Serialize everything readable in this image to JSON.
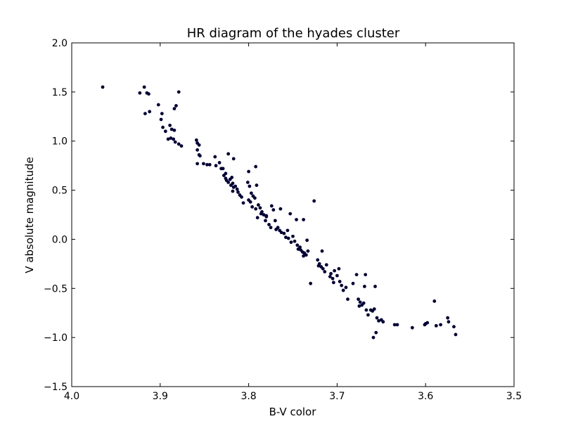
{
  "chart_data": {
    "type": "scatter",
    "title": "HR diagram of the hyades cluster",
    "xlabel": "B-V color",
    "ylabel": "V absolute magnitude",
    "xlim": [
      4.0,
      3.5
    ],
    "ylim": [
      -1.5,
      2.0
    ],
    "x_ticks": [
      4.0,
      3.9,
      3.8,
      3.7,
      3.6,
      3.5
    ],
    "x_tick_labels": [
      "4.0",
      "3.9",
      "3.8",
      "3.7",
      "3.6",
      "3.5"
    ],
    "y_ticks": [
      -1.5,
      -1.0,
      -0.5,
      0.0,
      0.5,
      1.0,
      1.5,
      2.0
    ],
    "y_tick_labels": [
      "−1.5",
      "−1.0",
      "−0.5",
      "0.0",
      "0.5",
      "1.0",
      "1.5",
      "2.0"
    ],
    "grid": false,
    "legend": "none",
    "marker_color": "#000033",
    "points": [
      {
        "x": 3.965,
        "y": 1.55
      },
      {
        "x": 3.923,
        "y": 1.49
      },
      {
        "x": 3.918,
        "y": 1.55
      },
      {
        "x": 3.915,
        "y": 1.49
      },
      {
        "x": 3.913,
        "y": 1.48
      },
      {
        "x": 3.917,
        "y": 1.28
      },
      {
        "x": 3.912,
        "y": 1.3
      },
      {
        "x": 3.879,
        "y": 1.5
      },
      {
        "x": 3.882,
        "y": 1.36
      },
      {
        "x": 3.884,
        "y": 1.33
      },
      {
        "x": 3.902,
        "y": 1.37
      },
      {
        "x": 3.898,
        "y": 1.28
      },
      {
        "x": 3.899,
        "y": 1.22
      },
      {
        "x": 3.897,
        "y": 1.14
      },
      {
        "x": 3.894,
        "y": 1.1
      },
      {
        "x": 3.889,
        "y": 1.16
      },
      {
        "x": 3.887,
        "y": 1.12
      },
      {
        "x": 3.884,
        "y": 1.11
      },
      {
        "x": 3.891,
        "y": 1.02
      },
      {
        "x": 3.888,
        "y": 1.03
      },
      {
        "x": 3.885,
        "y": 1.02
      },
      {
        "x": 3.883,
        "y": 0.99
      },
      {
        "x": 3.879,
        "y": 0.97
      },
      {
        "x": 3.876,
        "y": 0.95
      },
      {
        "x": 3.859,
        "y": 1.01
      },
      {
        "x": 3.858,
        "y": 0.98
      },
      {
        "x": 3.856,
        "y": 0.96
      },
      {
        "x": 3.858,
        "y": 0.91
      },
      {
        "x": 3.856,
        "y": 0.86
      },
      {
        "x": 3.855,
        "y": 0.85
      },
      {
        "x": 3.858,
        "y": 0.77
      },
      {
        "x": 3.851,
        "y": 0.77
      },
      {
        "x": 3.847,
        "y": 0.76
      },
      {
        "x": 3.844,
        "y": 0.76
      },
      {
        "x": 3.838,
        "y": 0.84
      },
      {
        "x": 3.837,
        "y": 0.75
      },
      {
        "x": 3.833,
        "y": 0.78
      },
      {
        "x": 3.831,
        "y": 0.72
      },
      {
        "x": 3.829,
        "y": 0.72
      },
      {
        "x": 3.823,
        "y": 0.87
      },
      {
        "x": 3.817,
        "y": 0.82
      },
      {
        "x": 3.828,
        "y": 0.65
      },
      {
        "x": 3.826,
        "y": 0.62
      },
      {
        "x": 3.825,
        "y": 0.6
      },
      {
        "x": 3.823,
        "y": 0.58
      },
      {
        "x": 3.821,
        "y": 0.61
      },
      {
        "x": 3.819,
        "y": 0.63
      },
      {
        "x": 3.818,
        "y": 0.57
      },
      {
        "x": 3.82,
        "y": 0.55
      },
      {
        "x": 3.817,
        "y": 0.53
      },
      {
        "x": 3.815,
        "y": 0.54
      },
      {
        "x": 3.813,
        "y": 0.51
      },
      {
        "x": 3.812,
        "y": 0.48
      },
      {
        "x": 3.81,
        "y": 0.45
      },
      {
        "x": 3.808,
        "y": 0.43
      },
      {
        "x": 3.818,
        "y": 0.49
      },
      {
        "x": 3.8,
        "y": 0.69
      },
      {
        "x": 3.792,
        "y": 0.74
      },
      {
        "x": 3.791,
        "y": 0.55
      },
      {
        "x": 3.801,
        "y": 0.58
      },
      {
        "x": 3.799,
        "y": 0.54
      },
      {
        "x": 3.797,
        "y": 0.47
      },
      {
        "x": 3.795,
        "y": 0.44
      },
      {
        "x": 3.793,
        "y": 0.42
      },
      {
        "x": 3.8,
        "y": 0.4
      },
      {
        "x": 3.798,
        "y": 0.38
      },
      {
        "x": 3.796,
        "y": 0.33
      },
      {
        "x": 3.792,
        "y": 0.31
      },
      {
        "x": 3.789,
        "y": 0.35
      },
      {
        "x": 3.787,
        "y": 0.32
      },
      {
        "x": 3.785,
        "y": 0.28
      },
      {
        "x": 3.783,
        "y": 0.25
      },
      {
        "x": 3.78,
        "y": 0.23
      },
      {
        "x": 3.786,
        "y": 0.26
      },
      {
        "x": 3.79,
        "y": 0.22
      },
      {
        "x": 3.781,
        "y": 0.19
      },
      {
        "x": 3.777,
        "y": 0.15
      },
      {
        "x": 3.774,
        "y": 0.34
      },
      {
        "x": 3.772,
        "y": 0.3
      },
      {
        "x": 3.764,
        "y": 0.31
      },
      {
        "x": 3.775,
        "y": 0.12
      },
      {
        "x": 3.77,
        "y": 0.19
      },
      {
        "x": 3.769,
        "y": 0.1
      },
      {
        "x": 3.767,
        "y": 0.12
      },
      {
        "x": 3.763,
        "y": 0.07
      },
      {
        "x": 3.76,
        "y": 0.06
      },
      {
        "x": 3.758,
        "y": 0.02
      },
      {
        "x": 3.755,
        "y": 0.01
      },
      {
        "x": 3.753,
        "y": 0.26
      },
      {
        "x": 3.746,
        "y": 0.2
      },
      {
        "x": 3.738,
        "y": 0.2
      },
      {
        "x": 3.756,
        "y": 0.09
      },
      {
        "x": 3.75,
        "y": 0.03
      },
      {
        "x": 3.748,
        "y": -0.02
      },
      {
        "x": 3.752,
        "y": -0.03
      },
      {
        "x": 3.745,
        "y": -0.06
      },
      {
        "x": 3.742,
        "y": -0.08
      },
      {
        "x": 3.741,
        "y": -0.11
      },
      {
        "x": 3.739,
        "y": -0.13
      },
      {
        "x": 3.737,
        "y": -0.14
      },
      {
        "x": 3.735,
        "y": -0.16
      },
      {
        "x": 3.734,
        "y": -0.01
      },
      {
        "x": 3.733,
        "y": -0.12
      },
      {
        "x": 3.738,
        "y": -0.17
      },
      {
        "x": 3.726,
        "y": 0.39
      },
      {
        "x": 3.73,
        "y": -0.45
      },
      {
        "x": 3.722,
        "y": -0.21
      },
      {
        "x": 3.72,
        "y": -0.25
      },
      {
        "x": 3.718,
        "y": -0.28
      },
      {
        "x": 3.716,
        "y": -0.3
      },
      {
        "x": 3.714,
        "y": -0.33
      },
      {
        "x": 3.717,
        "y": -0.12
      },
      {
        "x": 3.712,
        "y": -0.26
      },
      {
        "x": 3.708,
        "y": -0.38
      },
      {
        "x": 3.705,
        "y": -0.4
      },
      {
        "x": 3.703,
        "y": -0.32
      },
      {
        "x": 3.7,
        "y": -0.37
      },
      {
        "x": 3.698,
        "y": -0.3
      },
      {
        "x": 3.697,
        "y": -0.43
      },
      {
        "x": 3.695,
        "y": -0.47
      },
      {
        "x": 3.693,
        "y": -0.52
      },
      {
        "x": 3.69,
        "y": -0.49
      },
      {
        "x": 3.688,
        "y": -0.61
      },
      {
        "x": 3.682,
        "y": -0.45
      },
      {
        "x": 3.678,
        "y": -0.36
      },
      {
        "x": 3.676,
        "y": -0.61
      },
      {
        "x": 3.674,
        "y": -0.64
      },
      {
        "x": 3.672,
        "y": -0.67
      },
      {
        "x": 3.67,
        "y": -0.65
      },
      {
        "x": 3.669,
        "y": -0.48
      },
      {
        "x": 3.667,
        "y": -0.72
      },
      {
        "x": 3.665,
        "y": -0.77
      },
      {
        "x": 3.668,
        "y": -0.36
      },
      {
        "x": 3.662,
        "y": -0.72
      },
      {
        "x": 3.658,
        "y": -0.71
      },
      {
        "x": 3.657,
        "y": -0.48
      },
      {
        "x": 3.655,
        "y": -0.8
      },
      {
        "x": 3.653,
        "y": -0.83
      },
      {
        "x": 3.65,
        "y": -0.82
      },
      {
        "x": 3.648,
        "y": -0.84
      },
      {
        "x": 3.656,
        "y": -0.95
      },
      {
        "x": 3.659,
        "y": -1.0
      },
      {
        "x": 3.635,
        "y": -0.87
      },
      {
        "x": 3.632,
        "y": -0.87
      },
      {
        "x": 3.615,
        "y": -0.9
      },
      {
        "x": 3.601,
        "y": -0.87
      },
      {
        "x": 3.598,
        "y": -0.85
      },
      {
        "x": 3.59,
        "y": -0.63
      },
      {
        "x": 3.588,
        "y": -0.88
      },
      {
        "x": 3.583,
        "y": -0.87
      },
      {
        "x": 3.575,
        "y": -0.8
      },
      {
        "x": 3.574,
        "y": -0.84
      },
      {
        "x": 3.568,
        "y": -0.89
      },
      {
        "x": 3.566,
        "y": -0.97
      },
      {
        "x": 3.6,
        "y": -0.86
      },
      {
        "x": 3.707,
        "y": -0.35
      },
      {
        "x": 3.675,
        "y": -0.68
      },
      {
        "x": 3.744,
        "y": -0.1
      },
      {
        "x": 3.806,
        "y": 0.37
      },
      {
        "x": 3.826,
        "y": 0.67
      },
      {
        "x": 3.78,
        "y": 0.24
      },
      {
        "x": 3.765,
        "y": 0.09
      },
      {
        "x": 3.704,
        "y": -0.44
      },
      {
        "x": 3.721,
        "y": -0.27
      },
      {
        "x": 3.66,
        "y": -0.73
      }
    ]
  }
}
